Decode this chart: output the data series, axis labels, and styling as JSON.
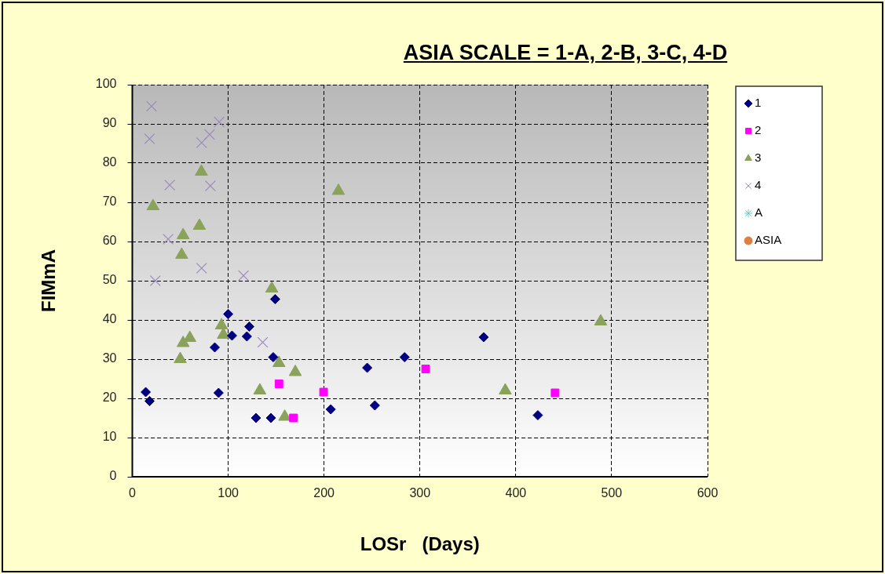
{
  "chart_data": {
    "type": "scatter",
    "title": "ASIA SCALE = 1-A, 2-B, 3-C, 4-D",
    "xlabel": "LOSr   (Days)",
    "ylabel": "FIMmA",
    "xlim": [
      0,
      600
    ],
    "xticks": [
      0,
      100,
      200,
      300,
      400,
      500,
      600
    ],
    "ylim": [
      0,
      100
    ],
    "yticks": [
      0,
      10,
      20,
      30,
      40,
      50,
      60,
      70,
      80,
      90,
      100
    ],
    "grid": true,
    "legend": "top right",
    "series": [
      {
        "name": "1",
        "color": "#000080",
        "marker": "diamond",
        "x": [
          14,
          18,
          90,
          86,
          100,
          104,
          122,
          119.5,
          147,
          149,
          129,
          144.6,
          207,
          245,
          253,
          284,
          366.5,
          423
        ],
        "values": [
          21.6,
          19.3,
          21.4,
          33,
          41.5,
          36,
          38.3,
          35.8,
          30.5,
          45.3,
          15,
          15,
          17.2,
          27.8,
          18.2,
          30.5,
          35.6,
          15.7
        ]
      },
      {
        "name": "2",
        "color": "#ff00ff",
        "marker": "square",
        "x": [
          153,
          168,
          199.5,
          306,
          441
        ],
        "values": [
          23.7,
          15,
          21.6,
          27.5,
          21.4
        ]
      },
      {
        "name": "3",
        "color": "#8ba25a",
        "marker": "triangle",
        "x": [
          72,
          21.6,
          70,
          53,
          51.5,
          215,
          145.5,
          60,
          53,
          50,
          93,
          95,
          153,
          133,
          170,
          159,
          389,
          488.6
        ],
        "values": [
          77.8,
          69,
          64,
          61.6,
          56.6,
          72.9,
          48,
          35.4,
          34.1,
          30,
          38.6,
          36.2,
          29,
          22,
          26.7,
          15.3,
          22,
          39.6
        ]
      },
      {
        "name": "4",
        "color": "#9988bb",
        "marker": "cross",
        "x": [
          20,
          18,
          90.6,
          80.6,
          72.3,
          39,
          81.4,
          37.4,
          72.3,
          24,
          116,
          136
        ],
        "values": [
          94.5,
          86.2,
          90.5,
          87.3,
          85.2,
          74.4,
          74.2,
          60.6,
          53.2,
          50,
          51.3,
          34.3
        ]
      },
      {
        "name": "A",
        "color": "#66cccc",
        "marker": "star"
      },
      {
        "name": "ASIA",
        "color": "#e08040",
        "marker": "circle"
      }
    ]
  }
}
